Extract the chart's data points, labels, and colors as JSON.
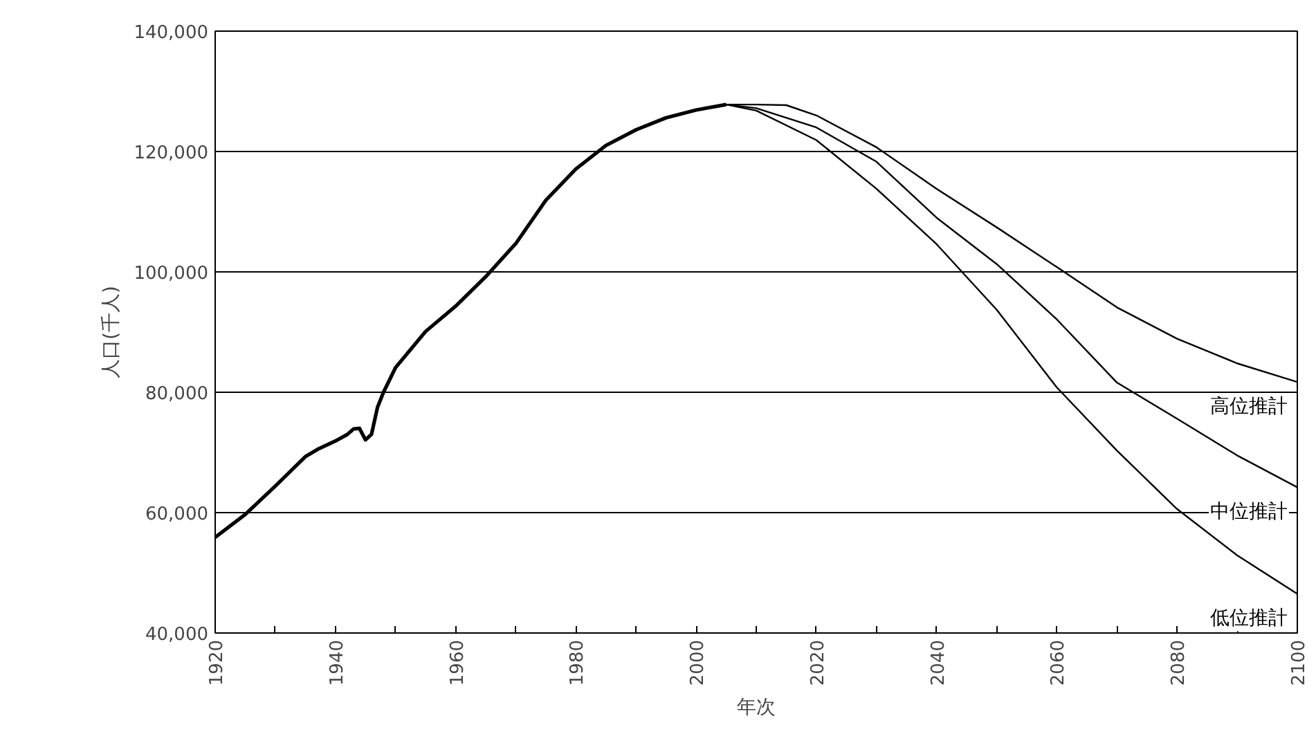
{
  "chart_data": {
    "type": "line",
    "xlabel": "年次",
    "ylabel": "人口(千人)",
    "xlim": [
      1920,
      2100
    ],
    "ylim": [
      40000,
      140000
    ],
    "xticks": [
      1920,
      {
        "value": 1930,
        "label": null
      },
      1940,
      {
        "value": 1950,
        "label": null
      },
      1960,
      {
        "value": 1970,
        "label": null
      },
      1980,
      {
        "value": 1990,
        "label": null
      },
      2000,
      {
        "value": 2010,
        "label": null
      },
      2020,
      {
        "value": 2030,
        "label": null
      },
      2040,
      {
        "value": 2050,
        "label": null
      },
      2060,
      {
        "value": 2070,
        "label": null
      },
      2080,
      {
        "value": 2090,
        "label": null
      },
      2100
    ],
    "yticks": [
      {
        "value": 40000,
        "label": "40,000"
      },
      {
        "value": 60000,
        "label": "60,000"
      },
      {
        "value": 80000,
        "label": "80,000"
      },
      {
        "value": 100000,
        "label": "100,000"
      },
      {
        "value": 120000,
        "label": "120,000"
      },
      {
        "value": 140000,
        "label": "140,000"
      }
    ],
    "grid": "y",
    "marker": "none",
    "line_style": "solid",
    "series": [
      {
        "color": "#000000",
        "x": [
          1920,
          1925,
          1930,
          1935,
          1937,
          1940,
          1942,
          1943,
          1944,
          1945,
          1946,
          1947,
          1948,
          1950,
          1955,
          1960,
          1965,
          1970,
          1975,
          1980,
          1985,
          1990,
          1995,
          2000,
          2005
        ],
        "values": [
          55900,
          59700,
          64400,
          69300,
          70500,
          71900,
          73000,
          73900,
          74000,
          72100,
          73000,
          77500,
          80000,
          84100,
          90100,
          94300,
          99200,
          104700,
          111900,
          117100,
          121000,
          123600,
          125600,
          126900,
          127800
        ]
      },
      {
        "name": "高位推計",
        "color": "#000000",
        "x": [
          2005,
          2010,
          2015,
          2020,
          2030,
          2040,
          2050,
          2060,
          2070,
          2080,
          2090,
          2100
        ],
        "values": [
          127800,
          127800,
          127700,
          126000,
          120700,
          113800,
          107400,
          100800,
          94100,
          88900,
          84800,
          81700
        ]
      },
      {
        "name": "中位推計",
        "color": "#000000",
        "x": [
          2005,
          2010,
          2020,
          2030,
          2040,
          2050,
          2060,
          2070,
          2080,
          2090,
          2100
        ],
        "values": [
          127800,
          127200,
          124000,
          118300,
          109000,
          101300,
          92100,
          81600,
          75600,
          69500,
          64200
        ]
      },
      {
        "name": "低位推計",
        "color": "#000000",
        "x": [
          2005,
          2010,
          2020,
          2030,
          2040,
          2050,
          2060,
          2070,
          2080,
          2090,
          2100
        ],
        "values": [
          127800,
          126800,
          121900,
          113800,
          104600,
          93700,
          80800,
          70300,
          60600,
          52900,
          46500
        ]
      }
    ]
  }
}
